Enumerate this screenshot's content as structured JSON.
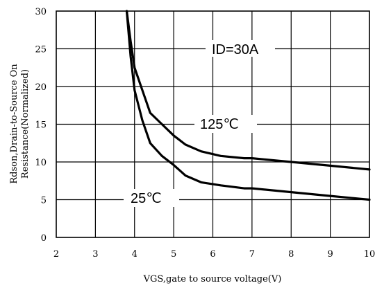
{
  "chart_data": {
    "type": "line",
    "xlabel": "VGS,gate to source voltage(V)",
    "ylabel_line1": "Rdson,Drain-to-Source On",
    "ylabel_line2": "Resistance(Normalized)",
    "xlim": [
      2,
      10
    ],
    "ylim": [
      0,
      30
    ],
    "x_ticks": [
      2,
      3,
      4,
      5,
      6,
      7,
      8,
      9,
      10
    ],
    "y_ticks": [
      0,
      5,
      10,
      15,
      20,
      25,
      30
    ],
    "grid": true,
    "annotations": {
      "condition": "ID=30A",
      "hot_label": "125℃",
      "cold_label": "25℃"
    },
    "series": [
      {
        "name": "125℃",
        "x": [
          3.8,
          3.9,
          4.0,
          4.2,
          4.4,
          4.7,
          5.0,
          5.3,
          5.7,
          6.2,
          6.8,
          7.0,
          8.0,
          9.0,
          10.0
        ],
        "y": [
          30,
          26,
          22.5,
          19.5,
          16.5,
          15.0,
          13.5,
          12.3,
          11.4,
          10.8,
          10.5,
          10.5,
          10.0,
          9.5,
          9.0
        ]
      },
      {
        "name": "25℃",
        "x": [
          3.8,
          3.9,
          4.0,
          4.2,
          4.4,
          4.7,
          5.0,
          5.3,
          5.7,
          6.2,
          6.8,
          7.0,
          8.0,
          9.0,
          10.0
        ],
        "y": [
          30,
          24,
          19.5,
          15.5,
          12.5,
          10.8,
          9.6,
          8.2,
          7.3,
          6.9,
          6.5,
          6.5,
          6.0,
          5.5,
          5.0
        ]
      }
    ]
  }
}
